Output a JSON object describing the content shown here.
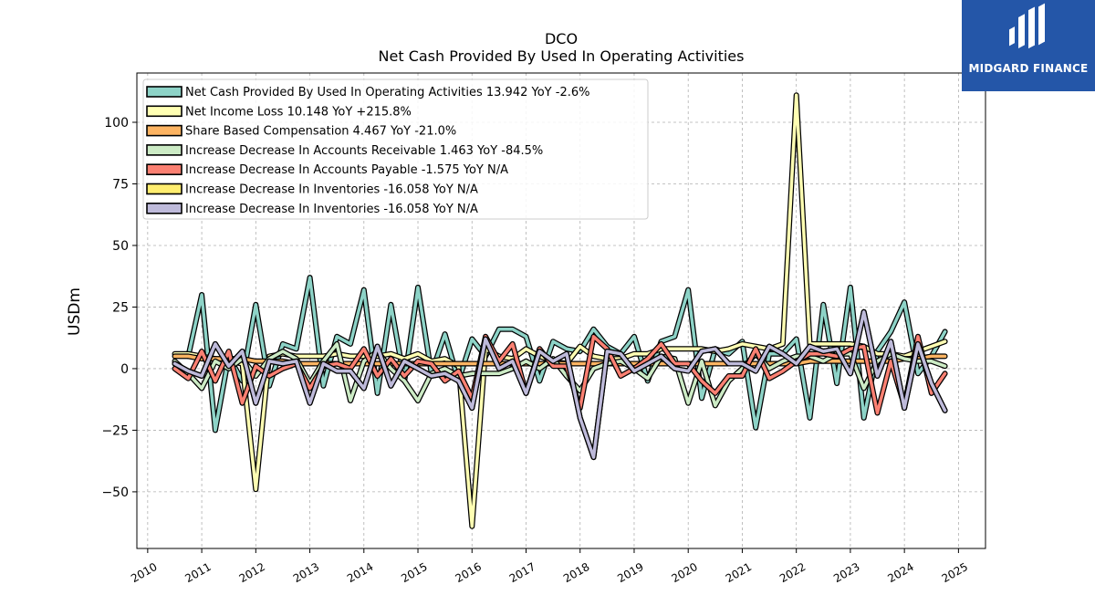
{
  "chart_data": {
    "type": "line",
    "title": "DCO",
    "subtitle": "Net Cash Provided By Used In Operating Activities",
    "ylabel": "USDm",
    "xlabel": "",
    "xlim": [
      2009.8,
      2025.5
    ],
    "ylim": [
      -73,
      120
    ],
    "x_ticks": [
      2010,
      2011,
      2012,
      2013,
      2014,
      2015,
      2016,
      2017,
      2018,
      2019,
      2020,
      2021,
      2022,
      2023,
      2024,
      2025
    ],
    "y_ticks": [
      -50,
      -25,
      0,
      25,
      50,
      75,
      100
    ],
    "grid": true,
    "legend_position": "top-left",
    "x": [
      2010.5,
      2010.75,
      2011.0,
      2011.25,
      2011.5,
      2011.75,
      2012.0,
      2012.25,
      2012.5,
      2012.75,
      2013.0,
      2013.25,
      2013.5,
      2013.75,
      2014.0,
      2014.25,
      2014.5,
      2014.75,
      2015.0,
      2015.25,
      2015.5,
      2015.75,
      2016.0,
      2016.25,
      2016.5,
      2016.75,
      2017.0,
      2017.25,
      2017.5,
      2017.75,
      2018.0,
      2018.25,
      2018.5,
      2018.75,
      2019.0,
      2019.25,
      2019.5,
      2019.75,
      2020.0,
      2020.25,
      2020.5,
      2020.75,
      2021.0,
      2021.25,
      2021.5,
      2021.75,
      2022.0,
      2022.25,
      2022.5,
      2022.75,
      2023.0,
      2023.25,
      2023.5,
      2023.75,
      2024.0,
      2024.25,
      2024.5,
      2024.75
    ],
    "series": [
      {
        "name": "Net Cash Provided By Used In Operating Activities",
        "legend": "Net Cash Provided By Used In Operating Activities  13.942 YoY -2.6%",
        "color": "#8dd3c7",
        "values": [
          null,
          5,
          30,
          -25,
          5,
          -5,
          26,
          -7,
          10,
          8,
          37,
          -7,
          13,
          10,
          32,
          -10,
          26,
          -5,
          33,
          -2,
          14,
          -5,
          12,
          5,
          16,
          16,
          13,
          -5,
          11,
          8,
          7,
          16,
          9,
          6,
          13,
          -5,
          11,
          13,
          32,
          -12,
          8,
          6,
          11,
          -24,
          6,
          6,
          12,
          -20,
          26,
          -6,
          33,
          -20,
          7,
          15,
          27,
          -2,
          5,
          15
        ]
      },
      {
        "name": "Net Income Loss",
        "legend": "Net Income Loss  10.148 YoY +215.8%",
        "color": "#ffffb3",
        "values": [
          6,
          6,
          5,
          4,
          3,
          2,
          -49,
          5,
          6,
          5,
          5,
          5,
          6,
          5,
          5,
          5,
          6,
          4,
          6,
          3,
          4,
          1,
          -64,
          8,
          5,
          4,
          8,
          5,
          3,
          2,
          9,
          5,
          4,
          4,
          6,
          6,
          8,
          8,
          8,
          8,
          7,
          8,
          10,
          9,
          8,
          10,
          111,
          10,
          10,
          10,
          10,
          9,
          6,
          6,
          5,
          7,
          9,
          11
        ]
      },
      {
        "name": "Share Based Compensation",
        "legend": "Share Based Compensation  4.467 YoY -21.0%",
        "color": "#fdb462",
        "values": [
          5,
          5,
          4,
          4,
          4,
          4,
          3,
          3,
          3,
          2,
          2,
          2,
          2,
          2,
          2,
          2,
          2,
          2,
          2,
          2,
          2,
          2,
          2,
          2,
          2,
          2,
          2,
          2,
          2,
          2,
          2,
          2,
          2,
          2,
          2,
          2,
          2,
          2,
          2,
          2,
          2,
          2,
          2,
          2,
          2,
          2,
          2,
          3,
          3,
          3,
          3,
          3,
          3,
          3,
          4,
          4,
          5,
          5
        ]
      },
      {
        "name": "Increase Decrease In Accounts Receivable",
        "legend": "Increase Decrease In Accounts Receivable  1.463 YoY -84.5%",
        "color": "#ccebc5",
        "values": [
          3,
          -2,
          -8,
          3,
          0,
          4,
          -3,
          4,
          7,
          4,
          -6,
          3,
          10,
          -13,
          3,
          7,
          0,
          -5,
          -13,
          -2,
          0,
          -3,
          -2,
          -2,
          -2,
          0,
          3,
          0,
          4,
          -3,
          -9,
          0,
          2,
          3,
          0,
          -4,
          5,
          4,
          -14,
          3,
          -15,
          -5,
          0,
          6,
          0,
          3,
          5,
          5,
          3,
          6,
          6,
          -8,
          3,
          6,
          4,
          3,
          3,
          1
        ]
      },
      {
        "name": "Increase Decrease In Accounts Payable",
        "legend": "Increase Decrease In Accounts Payable  -1.575 YoY N/A",
        "color": "#fb8072",
        "values": [
          0,
          -4,
          7,
          -5,
          7,
          -14,
          1,
          -3,
          0,
          2,
          -8,
          1,
          2,
          0,
          8,
          -3,
          4,
          -3,
          3,
          2,
          -5,
          -1,
          -12,
          13,
          3,
          10,
          -10,
          8,
          1,
          1,
          -16,
          13,
          8,
          -3,
          0,
          4,
          10,
          2,
          2,
          -5,
          -10,
          -3,
          -3,
          8,
          -4,
          -1,
          3,
          6,
          6,
          5,
          8,
          9,
          -18,
          3,
          -15,
          13,
          -10,
          -2
        ]
      },
      {
        "name": "Increase Decrease In Inventories",
        "legend": "Increase Decrease In Inventories  -16.058 YoY N/A",
        "color": "#ffed6f",
        "values": [
          2,
          -1,
          -3,
          10,
          1,
          7,
          -14,
          3,
          2,
          3,
          -14,
          2,
          -1,
          -1,
          -8,
          9,
          -7,
          3,
          0,
          -3,
          -2,
          -5,
          -16,
          12,
          0,
          3,
          -10,
          7,
          3,
          6,
          -20,
          -36,
          7,
          6,
          -1,
          2,
          5,
          0,
          -1,
          7,
          8,
          2,
          2,
          -1,
          9,
          6,
          2,
          9,
          7,
          8,
          -2,
          23,
          -3,
          11,
          -16,
          10,
          -6,
          -17
        ]
      },
      {
        "name": "Increase Decrease In Inventories",
        "legend": "Increase Decrease In Inventories  -16.058 YoY N/A",
        "color": "#bebada",
        "values": [
          2,
          -1,
          -3,
          10,
          1,
          7,
          -14,
          3,
          2,
          3,
          -14,
          2,
          -1,
          -1,
          -8,
          9,
          -7,
          3,
          0,
          -3,
          -2,
          -5,
          -16,
          12,
          0,
          3,
          -10,
          7,
          3,
          6,
          -20,
          -36,
          7,
          6,
          -1,
          2,
          5,
          0,
          -1,
          7,
          8,
          2,
          2,
          -1,
          9,
          6,
          2,
          9,
          7,
          8,
          -2,
          23,
          -3,
          11,
          -16,
          10,
          -6,
          -17
        ]
      }
    ]
  },
  "logo": {
    "text": "MIDGARD FINANCE",
    "background": "#2456a8"
  }
}
